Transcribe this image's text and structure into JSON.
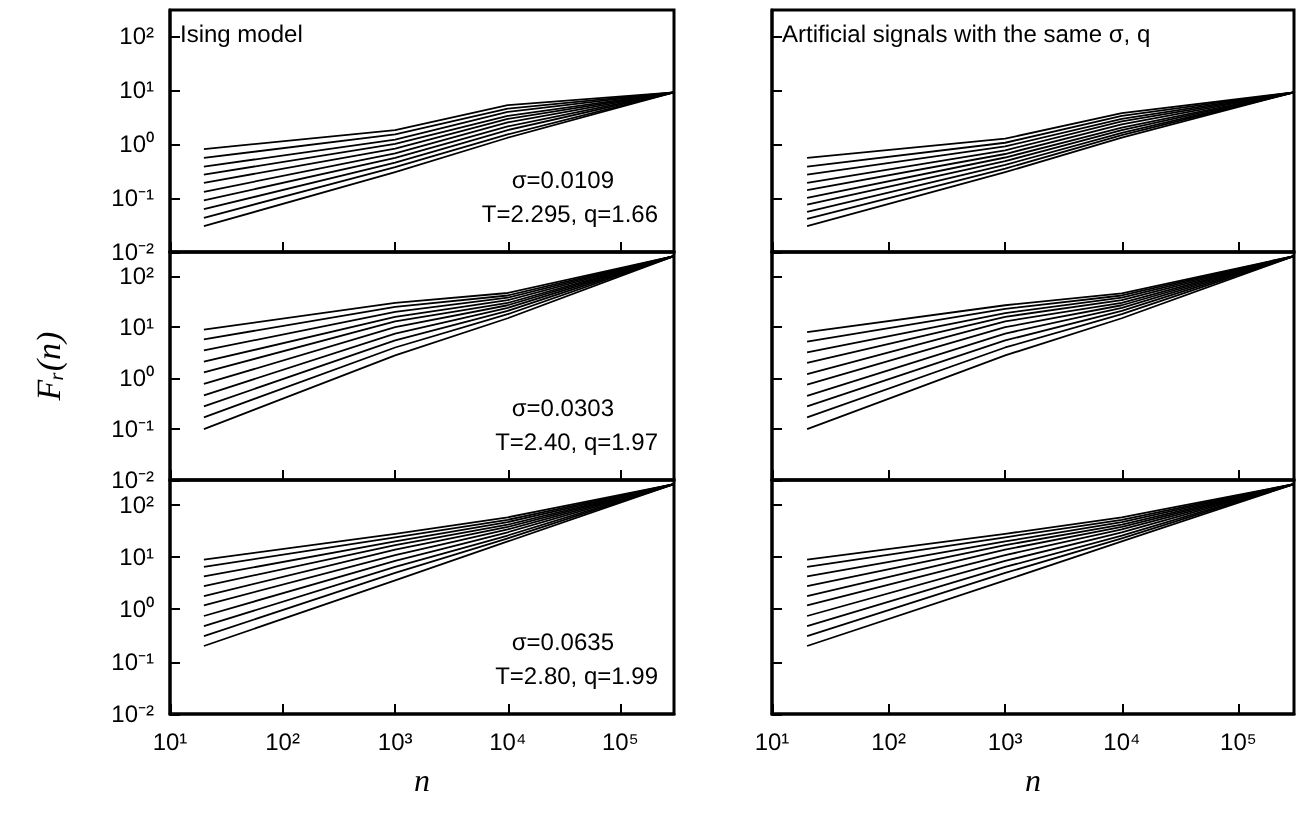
{
  "chart_data": [
    {
      "type": "line",
      "annotations": [
        "Ising model",
        "σ=0.0109",
        "T=2.295, q=1.66"
      ],
      "log": "xy",
      "tick_labels": "y",
      "x": [
        20,
        1000,
        10000,
        300000
      ],
      "xlim": [
        10,
        300000
      ],
      "ylim": [
        0.01,
        300
      ],
      "xticks": [
        {
          "value": 10,
          "label": null
        },
        {
          "value": 100,
          "label": null
        },
        {
          "value": 1000,
          "label": null
        },
        {
          "value": 10000,
          "label": null
        },
        {
          "value": 100000,
          "label": null
        }
      ],
      "yticks": [
        {
          "value": 0.01,
          "label": "10⁻²"
        },
        {
          "value": 0.1,
          "label": "10⁻¹"
        },
        {
          "value": 1,
          "label": "10⁰"
        },
        {
          "value": 10,
          "label": "10¹"
        },
        {
          "value": 100,
          "label": "10²"
        }
      ],
      "series": [
        {
          "color": "#000000",
          "values": [
            0.03,
            0.3,
            1.3,
            9
          ]
        },
        {
          "color": "#000000",
          "values": [
            0.043,
            0.37,
            1.5,
            9
          ]
        },
        {
          "color": "#000000",
          "values": [
            0.062,
            0.45,
            1.8,
            9
          ]
        },
        {
          "color": "#000000",
          "values": [
            0.09,
            0.55,
            2.1,
            9
          ]
        },
        {
          "color": "#000000",
          "values": [
            0.13,
            0.67,
            2.5,
            9
          ]
        },
        {
          "color": "#000000",
          "values": [
            0.19,
            0.82,
            2.9,
            9
          ]
        },
        {
          "color": "#000000",
          "values": [
            0.27,
            1.0,
            3.3,
            9
          ]
        },
        {
          "color": "#000000",
          "values": [
            0.38,
            1.2,
            3.9,
            9
          ]
        },
        {
          "color": "#000000",
          "values": [
            0.55,
            1.5,
            4.5,
            9
          ]
        },
        {
          "color": "#000000",
          "values": [
            0.8,
            1.8,
            5.2,
            9
          ]
        }
      ]
    },
    {
      "type": "line",
      "annotations": [
        "Artificial signals with the same σ, q"
      ],
      "log": "xy",
      "tick_labels": false,
      "x": [
        20,
        1000,
        10000,
        300000
      ],
      "xlim": [
        10,
        300000
      ],
      "ylim": [
        0.01,
        300
      ],
      "xticks": [
        {
          "value": 10,
          "label": null
        },
        {
          "value": 100,
          "label": null
        },
        {
          "value": 1000,
          "label": null
        },
        {
          "value": 10000,
          "label": null
        },
        {
          "value": 100000,
          "label": null
        }
      ],
      "yticks": [
        {
          "value": 0.01,
          "label": null
        },
        {
          "value": 0.1,
          "label": null
        },
        {
          "value": 1,
          "label": null
        },
        {
          "value": 10,
          "label": null
        },
        {
          "value": 100,
          "label": null
        }
      ],
      "series": [
        {
          "color": "#000000",
          "values": [
            0.03,
            0.3,
            1.3,
            9
          ]
        },
        {
          "color": "#000000",
          "values": [
            0.041,
            0.35,
            1.45,
            9
          ]
        },
        {
          "color": "#000000",
          "values": [
            0.055,
            0.41,
            1.6,
            9
          ]
        },
        {
          "color": "#000000",
          "values": [
            0.075,
            0.48,
            1.8,
            9
          ]
        },
        {
          "color": "#000000",
          "values": [
            0.1,
            0.56,
            2.0,
            9
          ]
        },
        {
          "color": "#000000",
          "values": [
            0.14,
            0.65,
            2.3,
            9
          ]
        },
        {
          "color": "#000000",
          "values": [
            0.19,
            0.76,
            2.6,
            9
          ]
        },
        {
          "color": "#000000",
          "values": [
            0.27,
            0.9,
            2.9,
            9
          ]
        },
        {
          "color": "#000000",
          "values": [
            0.38,
            1.05,
            3.3,
            9
          ]
        },
        {
          "color": "#000000",
          "values": [
            0.55,
            1.25,
            3.7,
            9
          ]
        }
      ]
    },
    {
      "type": "line",
      "ylabel": "Fᵣ(n)",
      "annotations": [
        "σ=0.0303",
        "T=2.40, q=1.97"
      ],
      "log": "xy",
      "tick_labels": "y",
      "x": [
        20,
        1000,
        10000,
        300000
      ],
      "xlim": [
        10,
        300000
      ],
      "ylim": [
        0.01,
        300
      ],
      "xticks": [
        {
          "value": 10,
          "label": null
        },
        {
          "value": 100,
          "label": null
        },
        {
          "value": 1000,
          "label": null
        },
        {
          "value": 10000,
          "label": null
        },
        {
          "value": 100000,
          "label": null
        }
      ],
      "yticks": [
        {
          "value": 0.01,
          "label": "10⁻²"
        },
        {
          "value": 0.1,
          "label": "10⁻¹"
        },
        {
          "value": 1,
          "label": "10⁰"
        },
        {
          "value": 10,
          "label": "10¹"
        },
        {
          "value": 100,
          "label": "10²"
        }
      ],
      "series": [
        {
          "color": "#000000",
          "values": [
            0.1,
            2.8,
            15,
            250
          ]
        },
        {
          "color": "#000000",
          "values": [
            0.17,
            4,
            18,
            250
          ]
        },
        {
          "color": "#000000",
          "values": [
            0.28,
            5.5,
            21,
            250
          ]
        },
        {
          "color": "#000000",
          "values": [
            0.46,
            7.5,
            24,
            250
          ]
        },
        {
          "color": "#000000",
          "values": [
            0.77,
            10,
            27,
            250
          ]
        },
        {
          "color": "#000000",
          "values": [
            1.3,
            13,
            30,
            250
          ]
        },
        {
          "color": "#000000",
          "values": [
            2.1,
            16,
            34,
            250
          ]
        },
        {
          "color": "#000000",
          "values": [
            3.5,
            20,
            38,
            250
          ]
        },
        {
          "color": "#000000",
          "values": [
            5.8,
            25,
            42,
            250
          ]
        },
        {
          "color": "#000000",
          "values": [
            9,
            30,
            47,
            250
          ]
        }
      ]
    },
    {
      "type": "line",
      "log": "xy",
      "tick_labels": false,
      "x": [
        20,
        1000,
        10000,
        300000
      ],
      "xlim": [
        10,
        300000
      ],
      "ylim": [
        0.01,
        300
      ],
      "xticks": [
        {
          "value": 10,
          "label": null
        },
        {
          "value": 100,
          "label": null
        },
        {
          "value": 1000,
          "label": null
        },
        {
          "value": 10000,
          "label": null
        },
        {
          "value": 100000,
          "label": null
        }
      ],
      "yticks": [
        {
          "value": 0.01,
          "label": null
        },
        {
          "value": 0.1,
          "label": null
        },
        {
          "value": 1,
          "label": null
        },
        {
          "value": 10,
          "label": null
        },
        {
          "value": 100,
          "label": null
        }
      ],
      "series": [
        {
          "color": "#000000",
          "values": [
            0.1,
            2.8,
            15,
            250
          ]
        },
        {
          "color": "#000000",
          "values": [
            0.17,
            4,
            18,
            250
          ]
        },
        {
          "color": "#000000",
          "values": [
            0.28,
            5.5,
            21,
            250
          ]
        },
        {
          "color": "#000000",
          "values": [
            0.45,
            7.5,
            24,
            250
          ]
        },
        {
          "color": "#000000",
          "values": [
            0.75,
            10,
            27,
            250
          ]
        },
        {
          "color": "#000000",
          "values": [
            1.2,
            13,
            30,
            250
          ]
        },
        {
          "color": "#000000",
          "values": [
            2,
            16,
            34,
            250
          ]
        },
        {
          "color": "#000000",
          "values": [
            3.2,
            19,
            38,
            250
          ]
        },
        {
          "color": "#000000",
          "values": [
            5.2,
            23,
            42,
            250
          ]
        },
        {
          "color": "#000000",
          "values": [
            8,
            27,
            46,
            250
          ]
        }
      ]
    },
    {
      "type": "line",
      "xlabel": "n",
      "annotations": [
        "σ=0.0635",
        "T=2.80, q=1.99"
      ],
      "log": "xy",
      "x": [
        20,
        1000,
        10000,
        300000
      ],
      "xlim": [
        10,
        300000
      ],
      "ylim": [
        0.01,
        300
      ],
      "xticks": [
        {
          "value": 10,
          "label": "10¹"
        },
        {
          "value": 100,
          "label": "10²"
        },
        {
          "value": 1000,
          "label": "10³"
        },
        {
          "value": 10000,
          "label": "10⁴"
        },
        {
          "value": 100000,
          "label": "10⁵"
        }
      ],
      "yticks": [
        {
          "value": 0.01,
          "label": "10⁻²"
        },
        {
          "value": 0.1,
          "label": "10⁻¹"
        },
        {
          "value": 1,
          "label": "10⁰"
        },
        {
          "value": 10,
          "label": "10¹"
        },
        {
          "value": 100,
          "label": "10²"
        }
      ],
      "series": [
        {
          "color": "#000000",
          "values": [
            0.2,
            3.6,
            20,
            250
          ]
        },
        {
          "color": "#000000",
          "values": [
            0.31,
            5,
            23,
            250
          ]
        },
        {
          "color": "#000000",
          "values": [
            0.48,
            6.5,
            26,
            250
          ]
        },
        {
          "color": "#000000",
          "values": [
            0.75,
            8.5,
            30,
            250
          ]
        },
        {
          "color": "#000000",
          "values": [
            1.2,
            11,
            34,
            250
          ]
        },
        {
          "color": "#000000",
          "values": [
            1.8,
            14,
            38,
            250
          ]
        },
        {
          "color": "#000000",
          "values": [
            2.8,
            17,
            42,
            250
          ]
        },
        {
          "color": "#000000",
          "values": [
            4.3,
            20,
            47,
            250
          ]
        },
        {
          "color": "#000000",
          "values": [
            6.5,
            24,
            52,
            250
          ]
        },
        {
          "color": "#000000",
          "values": [
            9,
            28,
            58,
            250
          ]
        }
      ]
    },
    {
      "type": "line",
      "xlabel": "n",
      "log": "xy",
      "tick_labels": "x",
      "x": [
        20,
        1000,
        10000,
        300000
      ],
      "xlim": [
        10,
        300000
      ],
      "ylim": [
        0.01,
        300
      ],
      "xticks": [
        {
          "value": 10,
          "label": "10¹"
        },
        {
          "value": 100,
          "label": "10²"
        },
        {
          "value": 1000,
          "label": "10³"
        },
        {
          "value": 10000,
          "label": "10⁴"
        },
        {
          "value": 100000,
          "label": "10⁵"
        }
      ],
      "yticks": [
        {
          "value": 0.01,
          "label": null
        },
        {
          "value": 0.1,
          "label": null
        },
        {
          "value": 1,
          "label": null
        },
        {
          "value": 10,
          "label": null
        },
        {
          "value": 100,
          "label": null
        }
      ],
      "series": [
        {
          "color": "#000000",
          "values": [
            0.2,
            3.6,
            20,
            250
          ]
        },
        {
          "color": "#000000",
          "values": [
            0.31,
            5,
            23,
            250
          ]
        },
        {
          "color": "#000000",
          "values": [
            0.48,
            6.5,
            26,
            250
          ]
        },
        {
          "color": "#000000",
          "values": [
            0.75,
            8.5,
            30,
            250
          ]
        },
        {
          "color": "#000000",
          "values": [
            1.2,
            11,
            34,
            250
          ]
        },
        {
          "color": "#000000",
          "values": [
            1.8,
            14,
            38,
            250
          ]
        },
        {
          "color": "#000000",
          "values": [
            2.8,
            17,
            42,
            250
          ]
        },
        {
          "color": "#000000",
          "values": [
            4.3,
            20,
            47,
            250
          ]
        },
        {
          "color": "#000000",
          "values": [
            6.5,
            24,
            52,
            250
          ]
        },
        {
          "color": "#000000",
          "values": [
            9,
            28,
            58,
            250
          ]
        }
      ]
    }
  ]
}
